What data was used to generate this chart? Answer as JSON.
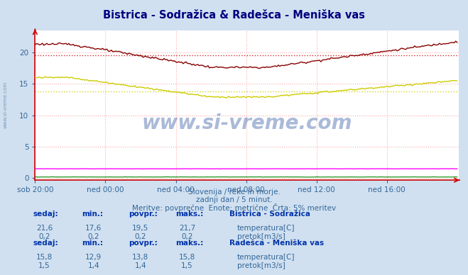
{
  "title": "Bistrica - Sodražica & Radešca - Meniška vas",
  "bg_color": "#d0e0f0",
  "plot_bg_color": "#ffffff",
  "title_color": "#000080",
  "watermark": "www.si-vreme.com",
  "subtitle_lines": [
    "Slovenija / reke in morje.",
    "zadnji dan / 5 minut.",
    "Meritve: povprečne  Enote: metrične  Črta: 5% meritev"
  ],
  "xticklabels": [
    "sob 20:00",
    "ned 00:00",
    "ned 04:00",
    "ned 08:00",
    "ned 12:00",
    "ned 16:00"
  ],
  "yticks": [
    0,
    5,
    10,
    15,
    20
  ],
  "ylim": [
    -0.3,
    23.5
  ],
  "xlim": [
    0,
    289
  ],
  "x_tick_positions": [
    0,
    48,
    96,
    144,
    192,
    240
  ],
  "grid_color": "#ffaaaa",
  "grid_linestyle": ":",
  "axis_color": "#cc0000",
  "hline1_y": 19.5,
  "hline1_color": "#cc0000",
  "hline2_y": 13.8,
  "hline2_color": "#cccc00",
  "line1_color": "#880000",
  "line2_color": "#008800",
  "line3_color": "#cccc00",
  "line4_color": "#ff00ff",
  "table_header_color": "#0033aa",
  "table_value_color": "#336699",
  "station1_name": "Bistrica - Sodražica",
  "station1_temp_sedaj": "21,6",
  "station1_temp_min": "17,6",
  "station1_temp_povpr": "19,5",
  "station1_temp_maks": "21,7",
  "station1_pretok_sedaj": "0,2",
  "station1_pretok_min": "0,2",
  "station1_pretok_povpr": "0,2",
  "station1_pretok_maks": "0,2",
  "station2_name": "Radešca - Meniška vas",
  "station2_temp_sedaj": "15,8",
  "station2_temp_min": "12,9",
  "station2_temp_povpr": "13,8",
  "station2_temp_maks": "15,8",
  "station2_pretok_sedaj": "1,5",
  "station2_pretok_min": "1,4",
  "station2_pretok_povpr": "1,4",
  "station2_pretok_maks": "1,5",
  "temp1_color": "#cc0000",
  "pretok1_color": "#00cc00",
  "temp2_color": "#cccc00",
  "pretok2_color": "#ff00ff"
}
